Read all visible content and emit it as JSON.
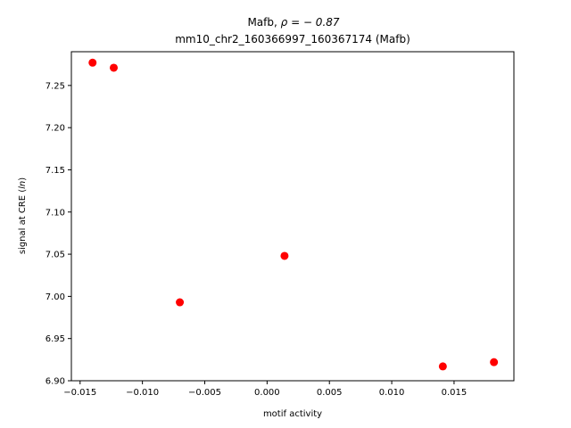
{
  "chart_data": {
    "type": "scatter",
    "title_gene": "Mafb, ",
    "title_rho": "ρ = − 0.87",
    "subtitle": "mm10_chr2_160366997_160367174 (Mafb)",
    "xlabel": "motif activity",
    "ylabel_prefix": "signal at CRE (",
    "ylabel_italic": "ln",
    "ylabel_suffix": ")",
    "xlim": [
      -0.0157,
      0.0198
    ],
    "ylim": [
      6.9,
      7.29
    ],
    "xticks": [
      -0.015,
      -0.01,
      -0.005,
      0.0,
      0.005,
      0.01,
      0.015
    ],
    "xtick_labels": [
      "−0.015",
      "−0.010",
      "−0.005",
      "0.000",
      "0.005",
      "0.010",
      "0.015"
    ],
    "yticks": [
      6.9,
      6.95,
      7.0,
      7.05,
      7.1,
      7.15,
      7.2,
      7.25
    ],
    "ytick_labels": [
      "6.90",
      "6.95",
      "7.00",
      "7.05",
      "7.10",
      "7.15",
      "7.20",
      "7.25"
    ],
    "marker_color": "#ff0000",
    "points": [
      {
        "x": -0.014,
        "y": 7.277
      },
      {
        "x": -0.0123,
        "y": 7.271
      },
      {
        "x": -0.007,
        "y": 6.993
      },
      {
        "x": 0.0014,
        "y": 7.048
      },
      {
        "x": 0.0141,
        "y": 6.917
      },
      {
        "x": 0.0182,
        "y": 6.922
      }
    ]
  }
}
